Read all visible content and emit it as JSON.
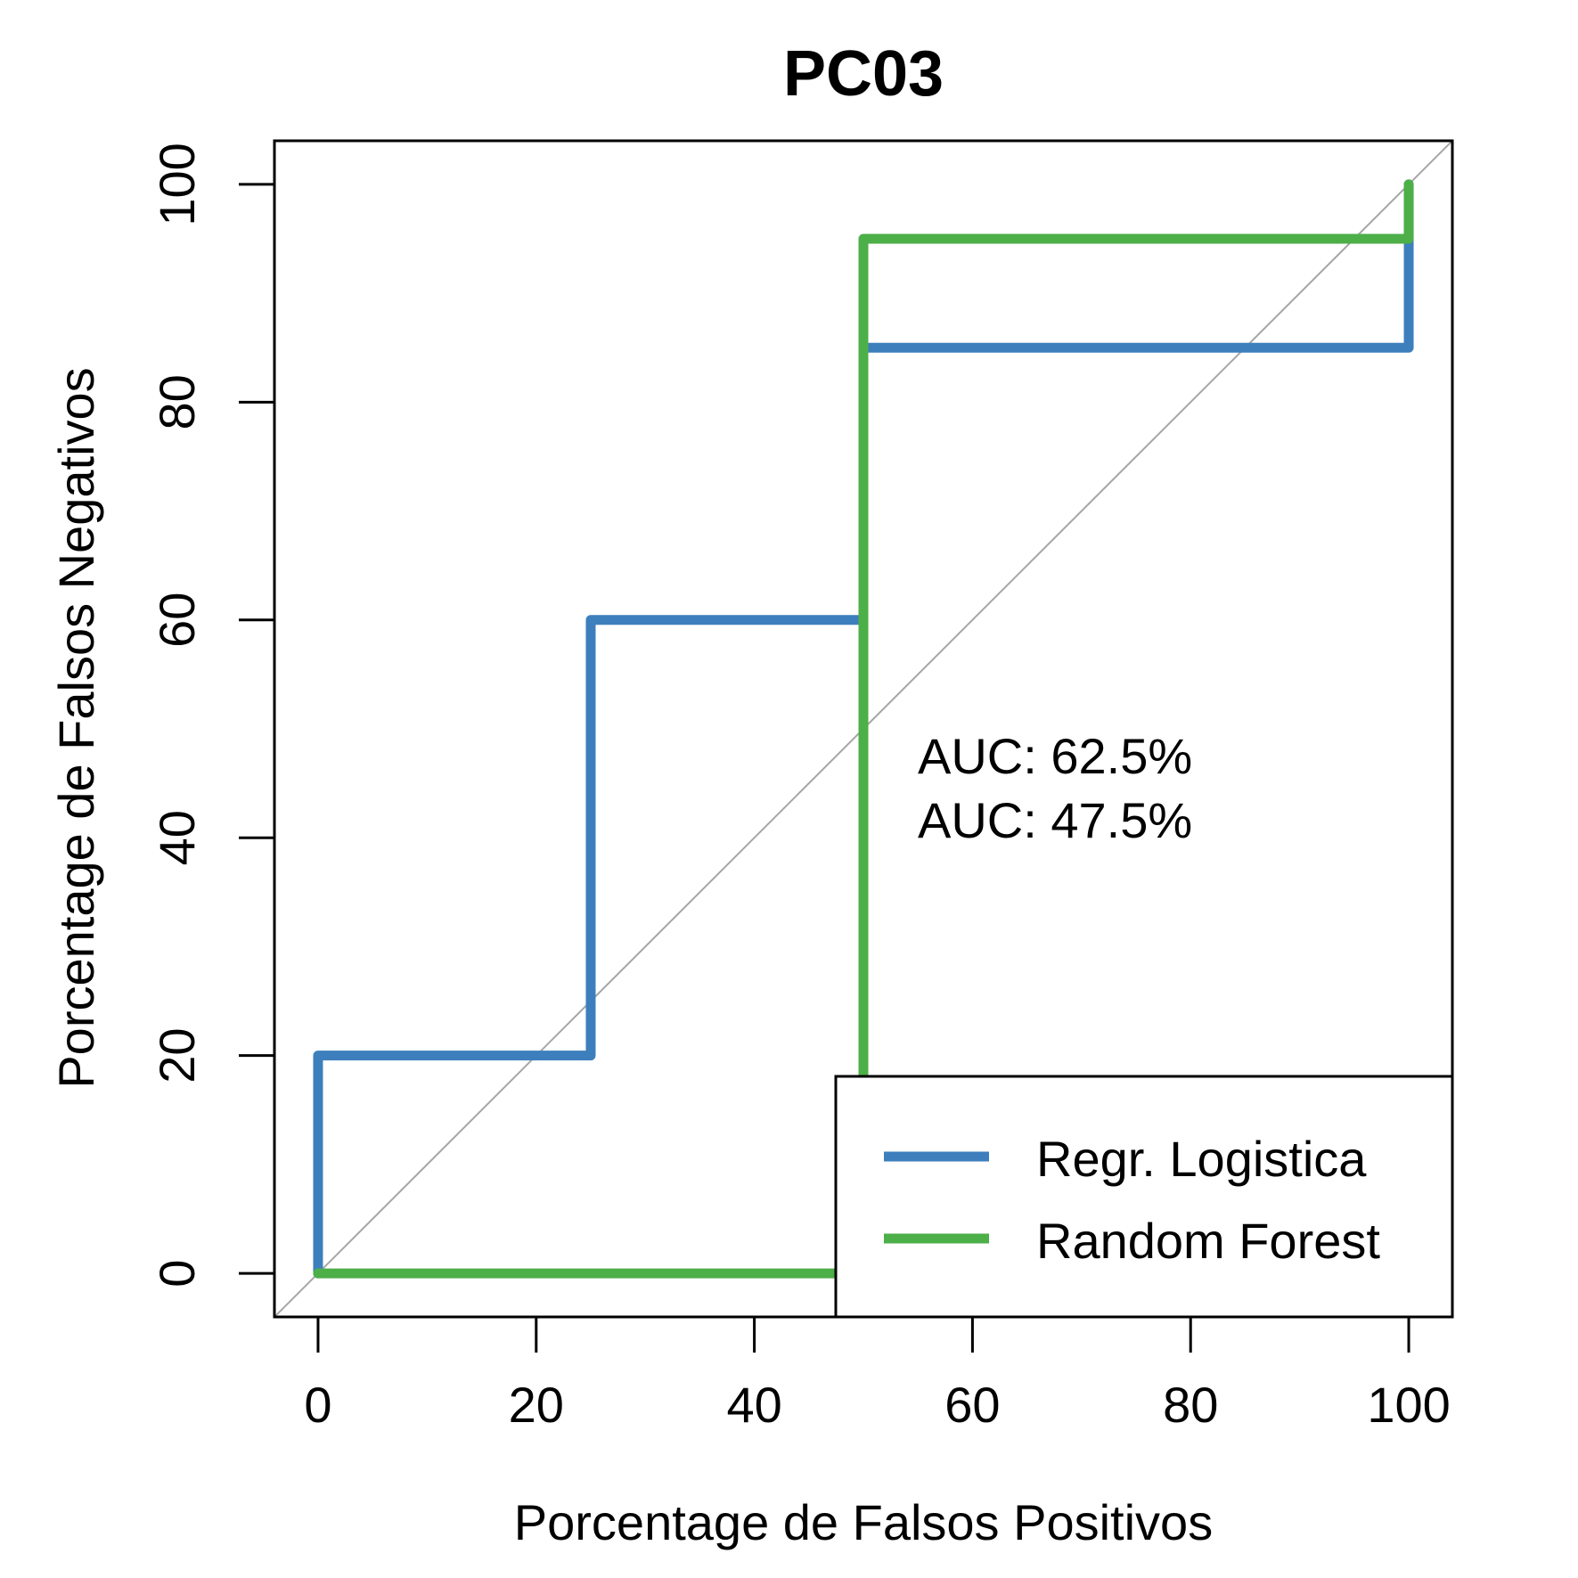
{
  "chart_data": {
    "type": "line",
    "title": "PC03",
    "xlabel": "Porcentage de Falsos Positivos",
    "ylabel": "Porcentage de Falsos Negativos",
    "xlim": [
      -4,
      104
    ],
    "ylim": [
      -4,
      104
    ],
    "xticks": [
      0,
      20,
      40,
      60,
      80,
      100
    ],
    "yticks": [
      0,
      20,
      40,
      60,
      80,
      100
    ],
    "grid": false,
    "reference_line": {
      "from": [
        0,
        0
      ],
      "to": [
        100,
        100
      ],
      "color": "#a6a6a6"
    },
    "legend": {
      "position": "bottom-right",
      "entries": [
        "Regr. Logistica",
        "Random Forest"
      ]
    },
    "series": [
      {
        "name": "Regr. Logistica",
        "color": "#3d7fbd",
        "step": true,
        "x": [
          0,
          0,
          25,
          25,
          50,
          50,
          100,
          100
        ],
        "y": [
          0,
          20,
          20,
          60,
          60,
          85,
          85,
          100
        ]
      },
      {
        "name": "Random Forest",
        "color": "#4caf48",
        "step": true,
        "x": [
          0,
          50,
          50,
          100,
          100
        ],
        "y": [
          0,
          0,
          95,
          95,
          100
        ]
      }
    ],
    "annotations": [
      {
        "text": "AUC: 62.5%",
        "color": "#3d7fbd"
      },
      {
        "text": "AUC: 47.5%",
        "color": "#4caf48"
      }
    ]
  }
}
